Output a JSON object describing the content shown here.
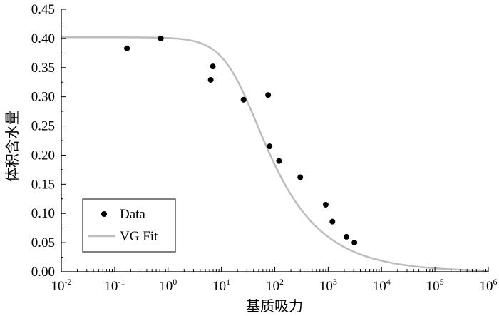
{
  "chart_data": {
    "type": "scatter",
    "title": "",
    "xlabel": "基质吸力",
    "ylabel": "体积含水量",
    "x_scale": "log10",
    "xlim_exponent": [
      -2,
      6
    ],
    "ylim": [
      0,
      0.45
    ],
    "y_ticks": [
      "0.00",
      "0.05",
      "0.10",
      "0.15",
      "0.20",
      "0.25",
      "0.30",
      "0.35",
      "0.40",
      "0.45"
    ],
    "x_ticks": [
      {
        "base": "10",
        "exp": "-2"
      },
      {
        "base": "10",
        "exp": "-1"
      },
      {
        "base": "10",
        "exp": "0"
      },
      {
        "base": "10",
        "exp": "1"
      },
      {
        "base": "10",
        "exp": "2"
      },
      {
        "base": "10",
        "exp": "3"
      },
      {
        "base": "10",
        "exp": "4"
      },
      {
        "base": "10",
        "exp": "5"
      },
      {
        "base": "10",
        "exp": "6"
      }
    ],
    "grid": false,
    "legend_position": "bottom-left",
    "series": [
      {
        "name": "Data",
        "kind": "scatter",
        "color": "#000000",
        "points": [
          {
            "x": 0.17,
            "y": 0.383
          },
          {
            "x": 0.73,
            "y": 0.4
          },
          {
            "x": 6.3,
            "y": 0.329
          },
          {
            "x": 6.9,
            "y": 0.352
          },
          {
            "x": 26,
            "y": 0.295
          },
          {
            "x": 75,
            "y": 0.303
          },
          {
            "x": 80,
            "y": 0.215
          },
          {
            "x": 120,
            "y": 0.19
          },
          {
            "x": 300,
            "y": 0.162
          },
          {
            "x": 900,
            "y": 0.115
          },
          {
            "x": 1200,
            "y": 0.086
          },
          {
            "x": 2200,
            "y": 0.06
          },
          {
            "x": 3100,
            "y": 0.05
          }
        ]
      },
      {
        "name": "VG Fit",
        "kind": "line",
        "color": "#bdbdbd",
        "model": {
          "theta_r": 0.0,
          "theta_s": 0.402,
          "alpha": 0.045,
          "n": 1.5
        }
      }
    ]
  }
}
